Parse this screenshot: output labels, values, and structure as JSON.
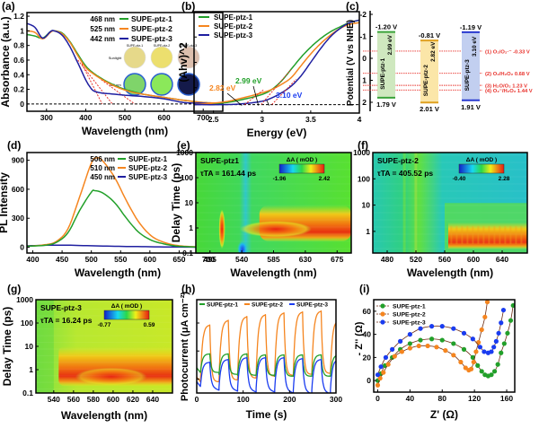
{
  "colors": {
    "ptz1": "#22a02a",
    "ptz2": "#f5851f",
    "ptz3": "#1f1fa0",
    "ptz3b": "#1a3cf0",
    "red": "#e8302a",
    "axis": "#000000"
  },
  "series_names": [
    "SUPE-ptz-1",
    "SUPE-ptz-2",
    "SUPE-ptz-3"
  ],
  "chart_data": [
    {
      "panel": "(a)",
      "type": "line",
      "xlabel": "Wavelength (nm)",
      "ylabel": "Absorbance (a.u.)",
      "xlim": [
        250,
        750
      ],
      "ylim": [
        -0.1,
        1.25
      ],
      "xticks": [
        300,
        400,
        500,
        600,
        700
      ],
      "yticks": [
        0.0,
        0.2,
        0.4,
        0.6,
        0.8,
        1.0,
        1.2
      ],
      "legend": [
        {
          "edge": "468 nm",
          "name": "SUPE-ptz-1"
        },
        {
          "edge": "525 nm",
          "name": "SUPE-ptz-2"
        },
        {
          "edge": "442 nm",
          "name": "SUPE-ptz-3"
        }
      ],
      "inset": {
        "columns": [
          "SUPE-ptz-1",
          "SUPE-ptz-2",
          "SUPE-ptz-3"
        ],
        "rows": [
          "Sunlight",
          "365 nm"
        ],
        "swatches": [
          [
            "#e6d98a",
            "#ecdf6e",
            "#dcbfae"
          ],
          [
            "#7fd46a",
            "#8be85a",
            "#141a4a"
          ]
        ]
      },
      "series": [
        {
          "name": "SUPE-ptz-1",
          "x": [
            250,
            270,
            290,
            310,
            320,
            340,
            360,
            380,
            400,
            420,
            440,
            460,
            480,
            500,
            520,
            550,
            600,
            650,
            700,
            750
          ],
          "y": [
            0.95,
            0.93,
            0.9,
            0.99,
            1.0,
            0.97,
            0.85,
            0.68,
            0.52,
            0.42,
            0.35,
            0.29,
            0.24,
            0.2,
            0.17,
            0.13,
            0.09,
            0.05,
            0.02,
            0.01
          ]
        },
        {
          "name": "SUPE-ptz-2",
          "x": [
            250,
            270,
            290,
            310,
            320,
            340,
            360,
            380,
            400,
            420,
            440,
            460,
            480,
            500,
            520,
            550,
            600,
            650,
            700,
            750
          ],
          "y": [
            1.0,
            0.98,
            0.89,
            0.98,
            1.0,
            0.96,
            0.84,
            0.66,
            0.5,
            0.41,
            0.34,
            0.28,
            0.23,
            0.19,
            0.16,
            0.13,
            0.09,
            0.05,
            0.02,
            0.01
          ]
        },
        {
          "name": "SUPE-ptz-3",
          "x": [
            250,
            270,
            290,
            310,
            320,
            340,
            360,
            380,
            400,
            410,
            420,
            440,
            460,
            500,
            550,
            600,
            650,
            700,
            750
          ],
          "y": [
            1.1,
            1.05,
            0.9,
            0.99,
            1.0,
            0.94,
            0.78,
            0.56,
            0.33,
            0.24,
            0.18,
            0.15,
            0.14,
            0.12,
            0.1,
            0.07,
            0.02,
            0.01,
            0.0
          ]
        }
      ],
      "tangents": [
        {
          "from": [
            390,
            0.55
          ],
          "to": [
            442,
            0.0
          ]
        },
        {
          "from": [
            380,
            0.6
          ],
          "to": [
            468,
            0.0
          ]
        },
        {
          "from": [
            440,
            0.33
          ],
          "to": [
            525,
            0.0
          ]
        }
      ]
    },
    {
      "panel": "(b)",
      "type": "line",
      "xlabel": "Energy (eV)",
      "ylabel": "(Ahv)^2",
      "xlim": [
        2.3,
        4.0
      ],
      "ylim": [
        -0.1,
        1.1
      ],
      "xticks": [
        2.5,
        3.0,
        3.5,
        4.0
      ],
      "legend": [
        "SUPE-ptz-1",
        "SUPE-ptz-2",
        "SUPE-ptz-3"
      ],
      "annotations": [
        {
          "text": "2.82 eV",
          "series": "SUPE-ptz-2",
          "x": 2.82
        },
        {
          "text": "2.99 eV",
          "series": "SUPE-ptz-1",
          "x": 2.99
        },
        {
          "text": "3.10 eV",
          "series": "SUPE-ptz-3",
          "x": 3.1
        }
      ],
      "series": [
        {
          "name": "SUPE-ptz-1",
          "x": [
            2.3,
            2.6,
            2.8,
            3.0,
            3.1,
            3.2,
            3.3,
            3.4,
            3.5,
            3.6,
            3.7,
            3.8,
            3.9,
            4.0
          ],
          "y": [
            0.0,
            0.02,
            0.06,
            0.12,
            0.18,
            0.28,
            0.42,
            0.56,
            0.68,
            0.78,
            0.86,
            0.92,
            0.97,
            1.0
          ]
        },
        {
          "name": "SUPE-ptz-2",
          "x": [
            2.3,
            2.6,
            2.8,
            3.0,
            3.1,
            3.2,
            3.3,
            3.4,
            3.5,
            3.6,
            3.7,
            3.8,
            3.9,
            4.0
          ],
          "y": [
            0.0,
            0.03,
            0.08,
            0.14,
            0.18,
            0.24,
            0.32,
            0.46,
            0.6,
            0.72,
            0.82,
            0.9,
            0.95,
            0.97
          ]
        },
        {
          "name": "SUPE-ptz-3",
          "x": [
            2.3,
            2.6,
            2.8,
            3.0,
            3.1,
            3.2,
            3.3,
            3.4,
            3.5,
            3.6,
            3.7,
            3.8,
            3.9,
            4.0
          ],
          "y": [
            0.0,
            0.0,
            0.01,
            0.04,
            0.08,
            0.14,
            0.22,
            0.34,
            0.5,
            0.66,
            0.8,
            0.9,
            0.97,
            1.0
          ]
        }
      ]
    },
    {
      "panel": "(c)",
      "type": "bar",
      "ylabel": "Potential (V vs NHE)",
      "ylim": [
        2.6,
        -2.0
      ],
      "yticks": [
        -2,
        -1,
        0,
        1,
        2
      ],
      "bands": [
        {
          "name": "SUPE-ptz-1",
          "cb": -1.2,
          "vb": 1.79,
          "gap": "2.99 eV",
          "cb_label": "-1.20 V",
          "vb_label": "1.79 V",
          "fill": "#cfe8bf",
          "edge": "#3aa33a"
        },
        {
          "name": "SUPE-ptz-2",
          "cb": -0.81,
          "vb": 2.01,
          "gap": "2.82 eV",
          "cb_label": "-0.81 V",
          "vb_label": "2.01 V",
          "fill": "#fbe6a8",
          "edge": "#e0a020"
        },
        {
          "name": "SUPE-ptz-3",
          "cb": -1.19,
          "vb": 1.91,
          "gap": "3.10 eV",
          "cb_label": "-1.19 V",
          "vb_label": "1.91 V",
          "fill": "#c2cff0",
          "edge": "#2a3ad0"
        }
      ],
      "reference_levels": [
        {
          "label": "(1) O₂/O₂·⁻ -0.33 V",
          "value": -0.33
        },
        {
          "label": "(2) O₂/H₂O₂ 0.68 V",
          "value": 0.68
        },
        {
          "label": "(3) H₂O/O₂ 1.23 V",
          "value": 1.23
        },
        {
          "label": "(4) O₂⁻/H₂O₂ 1.44 V",
          "value": 1.44
        }
      ]
    },
    {
      "panel": "(d)",
      "type": "line",
      "xlabel": "Wavelength (nm)",
      "ylabel": "PL Intensity",
      "xlim": [
        390,
        700
      ],
      "ylim": [
        -60,
        980
      ],
      "xticks": [
        400,
        450,
        500,
        550,
        600,
        650,
        700
      ],
      "yticks": [
        0,
        300,
        600,
        900
      ],
      "legend": [
        {
          "peak": "506 nm",
          "name": "SUPE-ptz-1"
        },
        {
          "peak": "510 nm",
          "name": "SUPE-ptz-2"
        },
        {
          "peak": "450 nm",
          "name": "SUPE-ptz-3"
        }
      ],
      "series": [
        {
          "name": "SUPE-ptz-1",
          "x": [
            390,
            420,
            440,
            460,
            480,
            500,
            506,
            520,
            540,
            560,
            580,
            600,
            620,
            650,
            700
          ],
          "y": [
            10,
            20,
            50,
            150,
            380,
            570,
            585,
            560,
            460,
            300,
            160,
            80,
            40,
            10,
            0
          ]
        },
        {
          "name": "SUPE-ptz-2",
          "x": [
            390,
            420,
            440,
            460,
            480,
            500,
            510,
            520,
            540,
            560,
            580,
            600,
            620,
            650,
            700
          ],
          "y": [
            10,
            25,
            60,
            190,
            520,
            870,
            925,
            890,
            720,
            480,
            270,
            130,
            60,
            15,
            0
          ]
        },
        {
          "name": "SUPE-ptz-3",
          "x": [
            390,
            420,
            450,
            480,
            520,
            560,
            600,
            650,
            700
          ],
          "y": [
            15,
            20,
            22,
            18,
            12,
            8,
            5,
            2,
            0
          ]
        }
      ]
    },
    {
      "panel": "(e)",
      "type": "heatmap",
      "title": "SUPE-ptz1",
      "lifetime": "τTA = 161.44 ps",
      "xlabel": "Wavelength (nm)",
      "ylabel": "Delay Time (ps)",
      "xlim": [
        475,
        695
      ],
      "ylog": true,
      "ylim": [
        0.1,
        1000
      ],
      "xticks": [
        495,
        540,
        585,
        630,
        675
      ],
      "yticks": [
        "0.1",
        "1",
        "10",
        "100",
        "1000"
      ],
      "colorbar": {
        "label": "ΔA ( mOD )",
        "min": "-1.96",
        "max": "2.42"
      },
      "features": [
        {
          "type": "positive",
          "x": [
            510,
            515
          ],
          "t": [
            0.3,
            3
          ]
        },
        {
          "type": "negative",
          "x": [
            535,
            548
          ],
          "t": [
            0.1,
            0.4
          ]
        },
        {
          "type": "positive",
          "x": [
            565,
            695
          ],
          "t": [
            0.3,
            8
          ]
        }
      ]
    },
    {
      "panel": "(f)",
      "type": "heatmap",
      "title": "SUPE-ptz-2",
      "lifetime": "τTA = 405.52 ps",
      "xlabel": "Wavelength (nm)",
      "ylabel": "Delay Time (ps)",
      "xlim": [
        460,
        675
      ],
      "ylog": true,
      "ylim": [
        0.15,
        1000
      ],
      "xticks": [
        480,
        520,
        560,
        600,
        640
      ],
      "yticks": [
        "1",
        "10",
        "100",
        "1000"
      ],
      "colorbar": {
        "label": "ΔA ( mOD )",
        "min": "-0.40",
        "max": "2.28"
      },
      "features": [
        {
          "type": "positive",
          "x": [
            565,
            675
          ],
          "t": [
            0.2,
            1.2
          ]
        }
      ]
    },
    {
      "panel": "(g)",
      "type": "heatmap",
      "title": "SUPE-ptz-3",
      "lifetime": "τTA = 16.24 ps",
      "xlabel": "Wavelength (nm)",
      "ylabel": "Delay Time (ps)",
      "xlim": [
        522,
        660
      ],
      "ylog": true,
      "ylim": [
        0.1,
        1000
      ],
      "xticks": [
        540,
        560,
        580,
        600,
        620,
        640
      ],
      "yticks": [
        "0.1",
        "1",
        "10",
        "100",
        "1000"
      ],
      "colorbar": {
        "label": "ΔA ( mOD )",
        "min": "-0.77",
        "max": "0.59"
      },
      "features": [
        {
          "type": "positive",
          "x": [
            545,
            660
          ],
          "t": [
            0.2,
            5
          ]
        }
      ]
    },
    {
      "panel": "(h)",
      "type": "line",
      "xlabel": "Time (s)",
      "ylabel": "Photocurrent (μA cm⁻²)",
      "xlim": [
        0,
        300
      ],
      "xticks": [
        0,
        100,
        200,
        300
      ],
      "legend": [
        "SUPE-ptz-1",
        "SUPE-ptz-2",
        "SUPE-ptz-3"
      ],
      "period_s": 40,
      "on_offset_s": 8,
      "series": [
        {
          "name": "SUPE-ptz-1",
          "on_level": [
            0.42,
            0.42,
            0.42,
            0.41,
            0.41,
            0.41,
            0.41
          ],
          "off_level": [
            0.22,
            0.2,
            0.19,
            0.19,
            0.18,
            0.18,
            0.18
          ]
        },
        {
          "name": "SUPE-ptz-2",
          "on_level": [
            0.73,
            0.78,
            0.82,
            0.84,
            0.86,
            0.87,
            0.88,
            0.78
          ],
          "off_level": [
            0.12,
            0.14,
            0.16,
            0.18,
            0.19,
            0.2,
            0.21
          ]
        },
        {
          "name": "SUPE-ptz-3",
          "on_level": [
            0.33,
            0.36,
            0.38,
            0.38,
            0.38,
            0.37,
            0.36
          ],
          "off_level": [
            0.07,
            0.06,
            0.05,
            0.05,
            0.04,
            0.03,
            0.03
          ]
        }
      ]
    },
    {
      "panel": "(i)",
      "type": "scatter",
      "xlabel": "Z' (Ω)",
      "ylabel": "- Z'' (Ω)",
      "xlim": [
        -5,
        170
      ],
      "ylim": [
        -10,
        70
      ],
      "xticks": [
        0,
        40,
        80,
        120,
        160
      ],
      "yticks": [
        0,
        20,
        40,
        60
      ],
      "legend": [
        "SUPE-ptz-1",
        "SUPE-ptz-2",
        "SUPE-ptz-3"
      ],
      "series": [
        {
          "name": "SUPE-ptz-1",
          "x": [
            0,
            4,
            9,
            18,
            28,
            40,
            53,
            67,
            80,
            94,
            107,
            118,
            124,
            129,
            133,
            137,
            141,
            145,
            149,
            153,
            157,
            161,
            165,
            168
          ],
          "y": [
            0,
            6,
            13,
            20,
            27,
            32,
            35,
            36,
            35,
            32,
            27,
            20,
            13,
            8,
            5,
            4,
            5,
            8,
            14,
            24,
            32,
            41,
            52,
            65
          ]
        },
        {
          "name": "SUPE-ptz-2",
          "x": [
            0,
            3,
            7,
            13,
            21,
            30,
            40,
            51,
            62,
            73,
            84,
            94,
            103,
            109,
            113,
            116,
            119,
            122,
            125,
            129,
            133,
            136
          ],
          "y": [
            -4,
            2,
            7,
            14,
            21,
            25,
            28,
            30,
            30,
            29,
            26,
            22,
            16,
            11,
            9,
            10,
            16,
            25,
            33,
            44,
            55,
            68
          ]
        },
        {
          "name": "SUPE-ptz-3",
          "x": [
            0,
            4,
            10,
            18,
            28,
            40,
            53,
            67,
            80,
            94,
            107,
            118,
            127,
            132,
            137,
            141,
            144,
            147,
            150,
            153,
            156
          ],
          "y": [
            5,
            12,
            20,
            27,
            34,
            40,
            45,
            47,
            47,
            45,
            41,
            36,
            29,
            25,
            24,
            25,
            29,
            34,
            41,
            50,
            61
          ]
        }
      ]
    }
  ]
}
